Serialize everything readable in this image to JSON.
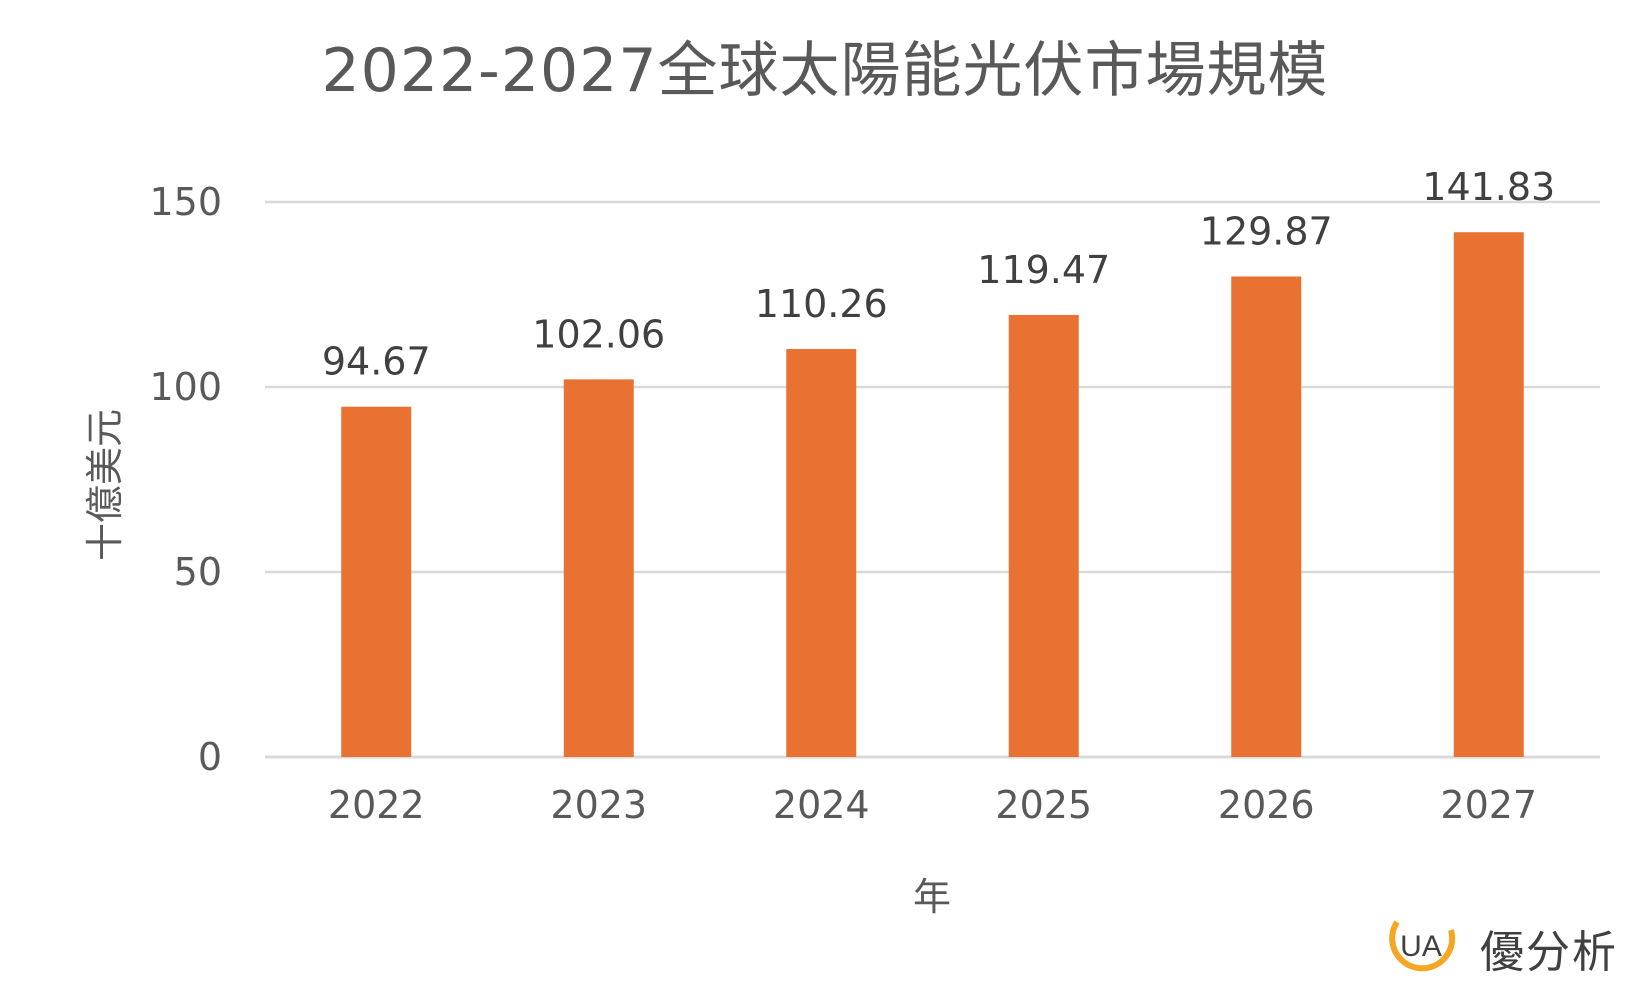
{
  "chart_data": {
    "type": "bar",
    "title": "2022-2027全球太陽能光伏市場規模",
    "xlabel": "年",
    "ylabel": "十億美元",
    "categories": [
      "2022",
      "2023",
      "2024",
      "2025",
      "2026",
      "2027"
    ],
    "values": [
      94.67,
      102.06,
      110.26,
      119.47,
      129.87,
      141.83
    ],
    "value_labels": [
      "94.67",
      "102.06",
      "110.26",
      "119.47",
      "129.87",
      "141.83"
    ],
    "ylim": [
      0,
      150
    ],
    "yticks": [
      "0",
      "50",
      "100",
      "150"
    ],
    "grid": true,
    "bar_color": "#E97132",
    "grid_color": "#D9D9D9"
  },
  "logo": {
    "text": "優分析",
    "mark_letters": "UA",
    "colors": {
      "ring": "#F5A623",
      "letters": "#404040"
    }
  }
}
